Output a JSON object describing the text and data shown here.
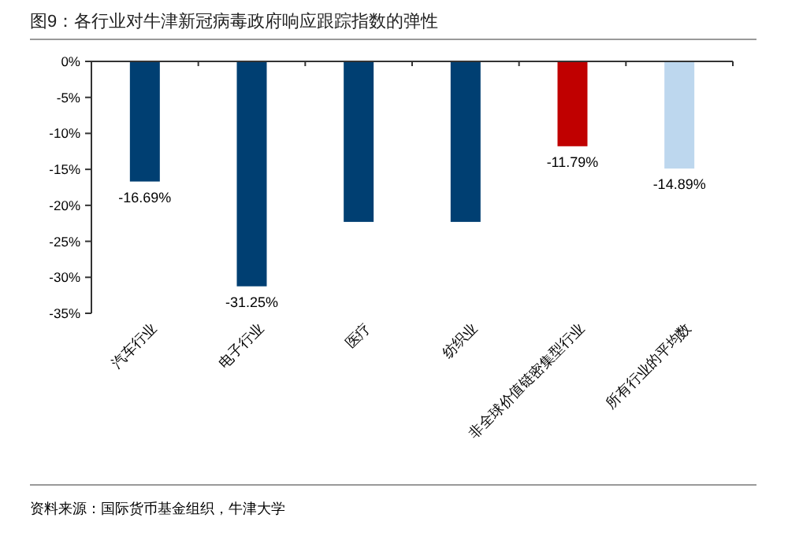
{
  "chart_data": {
    "type": "bar",
    "title": "图9：各行业对牛津新冠病毒政府响应跟踪指数的弹性",
    "categories": [
      "汽车行业",
      "电子行业",
      "医疗",
      "纺织业",
      "非全球价值链密集型行业",
      "所有行业的平均数"
    ],
    "values": [
      -16.69,
      -31.25,
      -22.3,
      -22.3,
      -11.79,
      -14.89
    ],
    "colors": [
      "#003f72",
      "#003f72",
      "#003f72",
      "#003f72",
      "#c00000",
      "#bdd7ee"
    ],
    "value_labels": [
      "-16.69%",
      "-31.25%",
      null,
      null,
      "-11.79%",
      "-14.89%"
    ],
    "ylim": [
      -35,
      0
    ],
    "yticks": [
      {
        "value": -35,
        "label": "-35%"
      },
      {
        "value": -30,
        "label": "-30%"
      },
      {
        "value": -25,
        "label": "-25%"
      },
      {
        "value": -20,
        "label": "-20%"
      },
      {
        "value": -15,
        "label": "-15%"
      },
      {
        "value": -10,
        "label": "-10%"
      },
      {
        "value": -5,
        "label": "-5%"
      },
      {
        "value": 0,
        "label": "0%"
      }
    ],
    "annotations": [
      "资料来源：国际货币基金组织，牛津大学"
    ]
  }
}
